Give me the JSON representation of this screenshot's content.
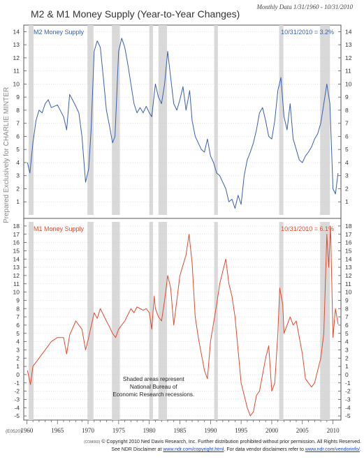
{
  "title": "M2 & M1 Money Supply (Year-to-Year Changes)",
  "period": "Monthly Data 1/31/1960 - 10/31/2010",
  "side_note": "Prepared Exclusively for CHARLIE MINTER",
  "chart_code": "(E0520)",
  "recession_note": [
    "Shaded areas represent",
    "National Bureau of",
    "Economic Research recessions."
  ],
  "footer": {
    "code": "(COM060)",
    "line1": "© Copyright 2010 Ned Davis Research, Inc.  Further distribution prohibited without prior permission.  All Rights Reserved.",
    "line2_pre": "See NDR Disclaimer at",
    "link1": "www.ndr.com/copyright.html",
    "line2_mid": ".  For data vendor disclaimers refer to",
    "link2": "www.ndr.com/vendorinfo/",
    "line2_post": "."
  },
  "colors": {
    "m2": "#3a5fb0",
    "m1": "#e8472c",
    "recession": "#d9d9d9",
    "grid": "#cccccc"
  },
  "chart_data": [
    {
      "type": "line",
      "title": "M2 Money Supply",
      "last_value_label": "10/31/2010 = 3.2%",
      "ylim": [
        0,
        14.5
      ],
      "y_ticks": [
        1,
        2,
        3,
        4,
        5,
        6,
        7,
        8,
        9,
        10,
        11,
        12,
        13,
        14
      ],
      "x": [
        1960.1,
        1960.5,
        1961,
        1961.5,
        1962,
        1962.5,
        1963,
        1963.5,
        1964,
        1965,
        1966,
        1966.5,
        1967,
        1967.8,
        1968.5,
        1969,
        1969.6,
        1970.1,
        1970.5,
        1971,
        1971.5,
        1972,
        1972.5,
        1973,
        1973.5,
        1974,
        1974.4,
        1975,
        1975.5,
        1976,
        1976.5,
        1977,
        1977.5,
        1978,
        1978.5,
        1979,
        1979.5,
        1980,
        1980.4,
        1981,
        1981.5,
        1982,
        1982.5,
        1983,
        1983.5,
        1984,
        1984.5,
        1985,
        1985.5,
        1986,
        1986.6,
        1987,
        1987.5,
        1988,
        1988.5,
        1989,
        1989.5,
        1990,
        1990.5,
        1991,
        1991.5,
        1992,
        1992.5,
        1993,
        1993.5,
        1994,
        1994.5,
        1995,
        1995.5,
        1996,
        1996.5,
        1997,
        1997.5,
        1998,
        1998.5,
        1999,
        1999.5,
        2000,
        2000.5,
        2001,
        2001.5,
        2002,
        2002.5,
        2003,
        2003.5,
        2004,
        2004.5,
        2005,
        2005.5,
        2006,
        2006.5,
        2007,
        2007.5,
        2008,
        2008.5,
        2009,
        2009.5,
        2010,
        2010.4,
        2010.83
      ],
      "values": [
        4.0,
        3.2,
        5.5,
        7.2,
        8.0,
        7.8,
        8.5,
        8.8,
        8.2,
        8.4,
        7.5,
        6.5,
        9.2,
        8.5,
        7.8,
        6.0,
        2.5,
        3.5,
        6.5,
        12.5,
        13.3,
        12.8,
        10.5,
        8.0,
        6.8,
        5.5,
        6.0,
        12.5,
        13.5,
        12.8,
        11.5,
        10.0,
        8.5,
        7.8,
        8.2,
        7.8,
        8.3,
        7.8,
        7.5,
        10.0,
        9.0,
        8.5,
        10.0,
        12.5,
        10.5,
        8.5,
        8.0,
        8.8,
        9.8,
        8.0,
        9.5,
        7.2,
        6.0,
        5.5,
        5.0,
        4.8,
        5.8,
        4.5,
        4.0,
        3.2,
        3.0,
        2.5,
        2.0,
        1.0,
        1.2,
        0.5,
        1.5,
        0.8,
        3.0,
        4.2,
        4.8,
        5.5,
        6.5,
        7.8,
        8.2,
        7.2,
        6.0,
        5.8,
        7.2,
        9.5,
        10.5,
        7.5,
        6.5,
        8.5,
        5.8,
        5.0,
        4.2,
        4.0,
        4.5,
        4.8,
        5.2,
        5.8,
        6.2,
        7.0,
        8.5,
        10.0,
        8.5,
        2.0,
        1.6,
        3.2
      ]
    },
    {
      "type": "line",
      "title": "M1 Money Supply",
      "last_value_label": "10/31/2010 = 6.1%",
      "ylim": [
        -5.5,
        18.5
      ],
      "y_ticks": [
        -5,
        -4,
        -3,
        -2,
        -1,
        0,
        1,
        2,
        3,
        4,
        5,
        6,
        7,
        8,
        9,
        10,
        11,
        12,
        13,
        14,
        15,
        16,
        17,
        18
      ],
      "x": [
        1960.1,
        1960.6,
        1961,
        1962,
        1963,
        1964,
        1965,
        1966,
        1966.5,
        1967,
        1968,
        1969,
        1969.6,
        1970.1,
        1971,
        1971.5,
        1972,
        1973,
        1973.5,
        1974,
        1974.5,
        1975,
        1976,
        1977,
        1977.5,
        1978,
        1979,
        1979.5,
        1980,
        1980.4,
        1980.8,
        1981,
        1981.5,
        1982,
        1982.5,
        1983,
        1983.5,
        1984,
        1985,
        1986,
        1986.5,
        1987,
        1987.5,
        1988,
        1989,
        1989.5,
        1990,
        1991,
        1991.5,
        1992,
        1992.5,
        1993,
        1993.5,
        1994,
        1995,
        1995.5,
        1996,
        1996.5,
        1997,
        1997.5,
        1998,
        1999,
        1999.5,
        2000,
        2000.5,
        2001,
        2001.3,
        2001.8,
        2002,
        2003,
        2003.5,
        2004,
        2005,
        2005.5,
        2006,
        2006.5,
        2007,
        2007.5,
        2008,
        2008.5,
        2009,
        2009.3,
        2009.6,
        2010,
        2010.4,
        2010.83
      ],
      "values": [
        0.5,
        -1.2,
        1.0,
        2.0,
        3.0,
        4.0,
        4.5,
        4.5,
        2.5,
        4.8,
        6.5,
        5.5,
        3.0,
        4.5,
        7.5,
        6.8,
        8.0,
        6.5,
        5.8,
        5.0,
        4.5,
        5.5,
        6.5,
        8.0,
        7.5,
        8.2,
        7.8,
        8.0,
        7.5,
        5.5,
        9.5,
        8.0,
        7.0,
        6.5,
        9.0,
        12.0,
        10.5,
        6.0,
        12.0,
        14.5,
        17.0,
        13.5,
        7.0,
        4.5,
        0.5,
        -0.5,
        4.0,
        8.5,
        11.0,
        12.5,
        14.0,
        11.0,
        9.5,
        7.0,
        -1.0,
        -2.5,
        -4.0,
        -5.0,
        -4.5,
        -2.5,
        -2.0,
        2.0,
        3.5,
        -2.0,
        -1.0,
        5.0,
        10.5,
        8.5,
        5.0,
        7.0,
        6.0,
        6.5,
        2.5,
        -0.5,
        -1.0,
        -1.5,
        -1.0,
        0.5,
        2.0,
        5.0,
        17.0,
        13.0,
        18.0,
        4.5,
        8.0,
        6.1
      ]
    }
  ],
  "x_axis": {
    "labels": [
      "1960",
      "1965",
      "1970",
      "1975",
      "1980",
      "1985",
      "1990",
      "1995",
      "2000",
      "2005",
      "2010"
    ],
    "years": [
      1960,
      1965,
      1970,
      1975,
      1980,
      1985,
      1990,
      1995,
      2000,
      2005,
      2010
    ]
  },
  "recessions": [
    [
      1960.3,
      1961.1
    ],
    [
      1969.9,
      1970.9
    ],
    [
      1973.9,
      1975.2
    ],
    [
      1980.0,
      1980.6
    ],
    [
      1981.5,
      1982.9
    ],
    [
      1990.6,
      1991.2
    ],
    [
      2001.2,
      2001.9
    ],
    [
      2007.9,
      2009.5
    ]
  ]
}
